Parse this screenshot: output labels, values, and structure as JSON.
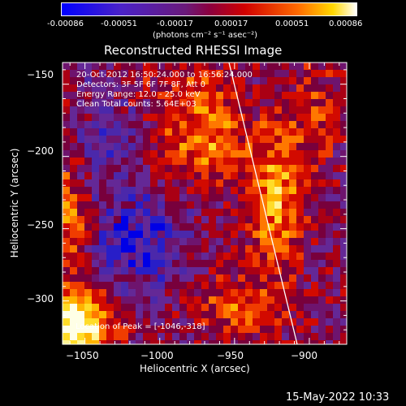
{
  "colorbar": {
    "ticks": [
      "-0.00086",
      "-0.00051",
      "-0.00017",
      "0.00017",
      "0.00051",
      "0.00086"
    ],
    "units": "(photons cm⁻² s⁻¹ asec⁻²)",
    "colors": [
      "#0000ff",
      "#5a1e9e",
      "#8a0a5a",
      "#c80000",
      "#ff5000",
      "#ffd200",
      "#ffffff"
    ]
  },
  "plot": {
    "title": "Reconstructed RHESSI Image",
    "xlabel": "Heliocentric X (arcsec)",
    "ylabel": "Heliocentric Y (arcsec)",
    "xticks": [
      "−1050",
      "−1000",
      "−950",
      "−900"
    ],
    "yticks": [
      "−150",
      "−200",
      "−250",
      "−300"
    ],
    "xrange": [
      -1065,
      -875
    ],
    "yrange": [
      -330,
      -135
    ],
    "info": [
      "20-Oct-2012 16:50:24.000 to 16:56:24.000",
      "Detectors: 3F 5F 6F 7F 8F, Att 0",
      "Energy Range: 12.0 - 25.0 keV",
      "Clean    Total counts: 5.64E+03"
    ],
    "peak_label": "Location of Peak = [-1046,-318]"
  },
  "timestamp": "15-May-2022 10:33"
}
